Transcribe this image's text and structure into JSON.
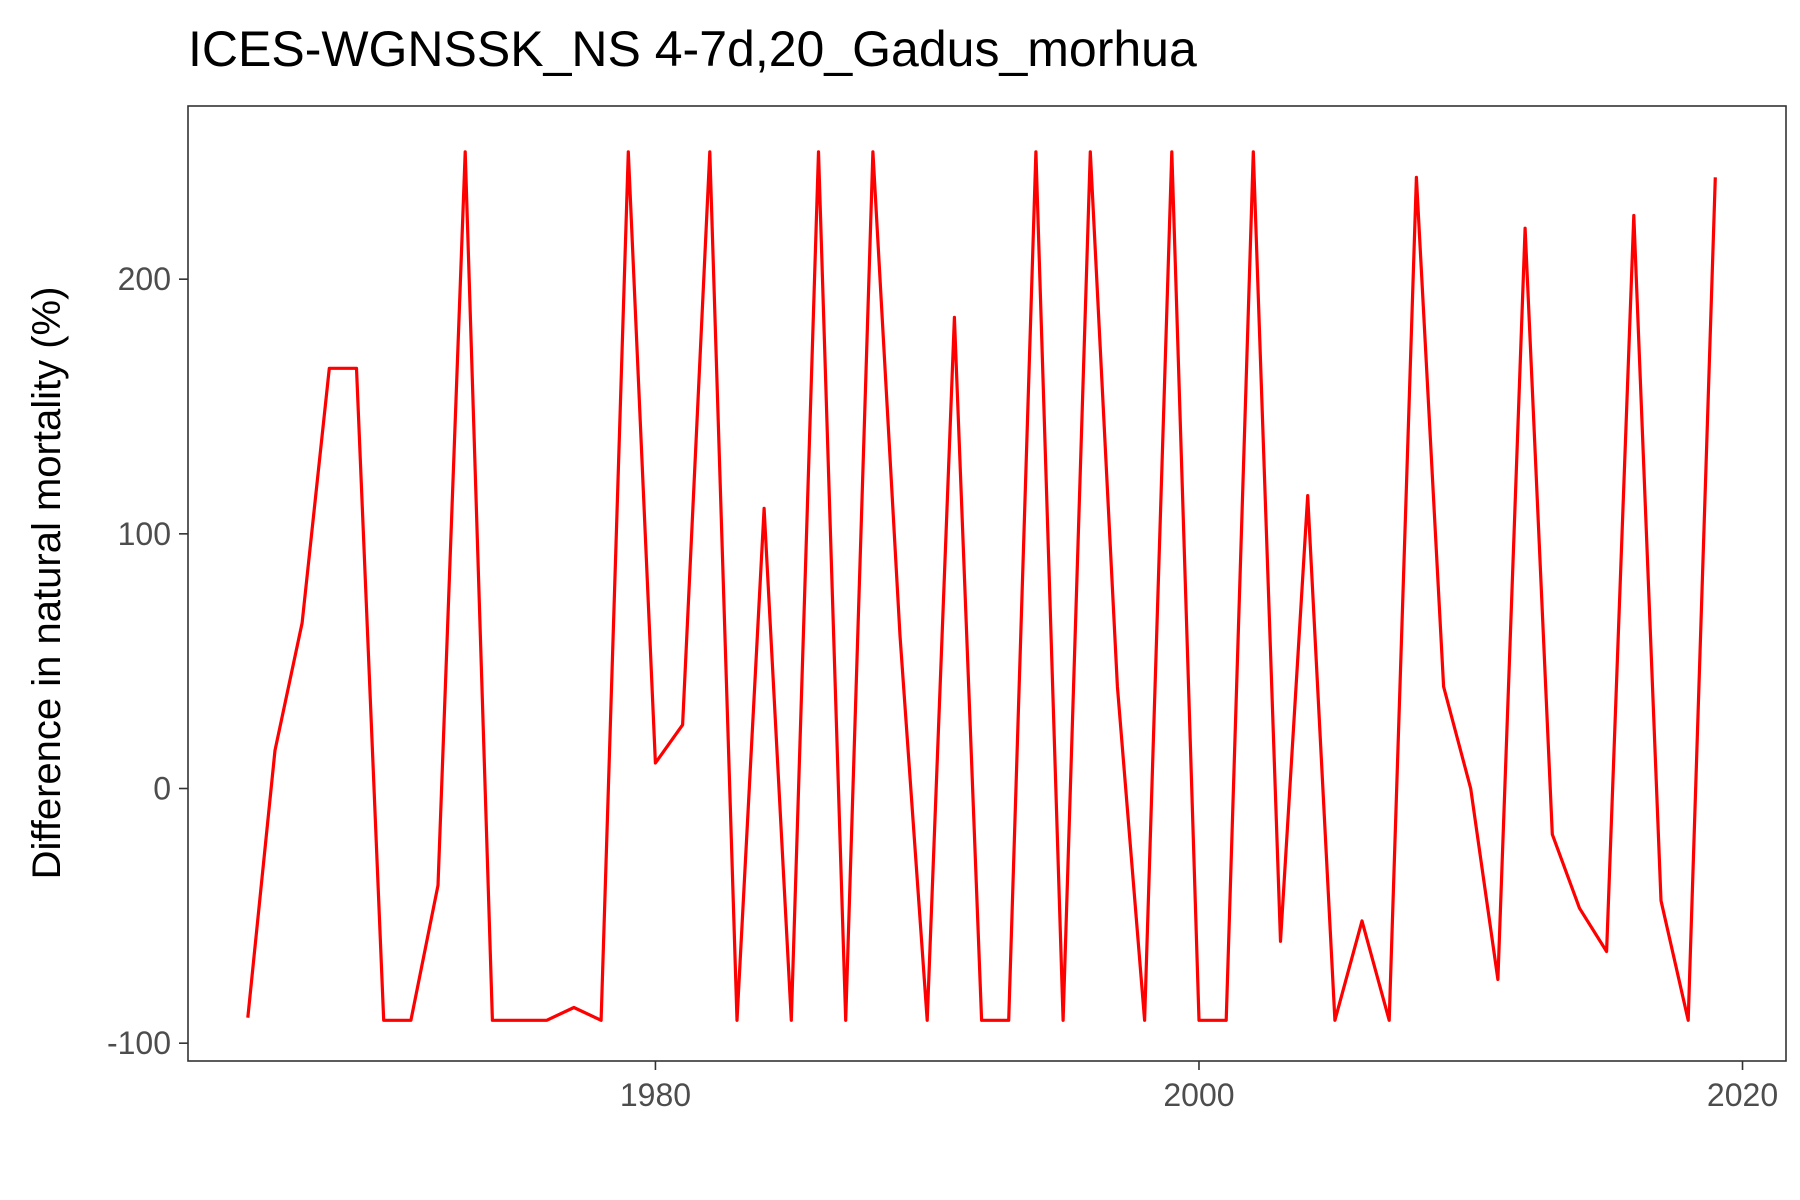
{
  "chart_data": {
    "type": "line",
    "title": "ICES-WGNSSK_NS 4-7d,20_Gadus_morhua",
    "xlabel": "",
    "ylabel": "Difference in natural mortality (%)",
    "xlim": [
      1962.8,
      2021.6
    ],
    "ylim": [
      -107,
      268
    ],
    "x_ticks": [
      1980,
      2000,
      2020
    ],
    "y_ticks": [
      -100,
      0,
      100,
      200
    ],
    "grid": false,
    "legend": "none",
    "line_color": "#ff0000",
    "series": [
      {
        "x": [
          1965,
          1966,
          1967,
          1968,
          1969,
          1970,
          1971,
          1972,
          1973,
          1974,
          1975,
          1976,
          1977,
          1978,
          1979,
          1980,
          1981,
          1982,
          1983,
          1984,
          1985,
          1986,
          1987,
          1988,
          1989,
          1990,
          1991,
          1992,
          1993,
          1994,
          1995,
          1996,
          1997,
          1998,
          1999,
          2000,
          2001,
          2002,
          2003,
          2004,
          2005,
          2006,
          2007,
          2008,
          2009,
          2010,
          2011,
          2012,
          2013,
          2014,
          2015,
          2016,
          2017,
          2018,
          2019
        ],
        "values": [
          -90,
          15,
          65,
          165,
          165,
          -91,
          -91,
          -38,
          250,
          -91,
          -91,
          -91,
          -86,
          -91,
          250,
          10,
          25,
          250,
          -91,
          110,
          -91,
          250,
          -91,
          250,
          60,
          -91,
          185,
          -91,
          -91,
          250,
          -91,
          250,
          40,
          -91,
          250,
          -91,
          -91,
          250,
          -60,
          115,
          -91,
          -52,
          -91,
          240,
          40,
          0,
          -75,
          220,
          -18,
          -47,
          -64,
          225,
          -44,
          -91,
          240
        ]
      }
    ]
  }
}
